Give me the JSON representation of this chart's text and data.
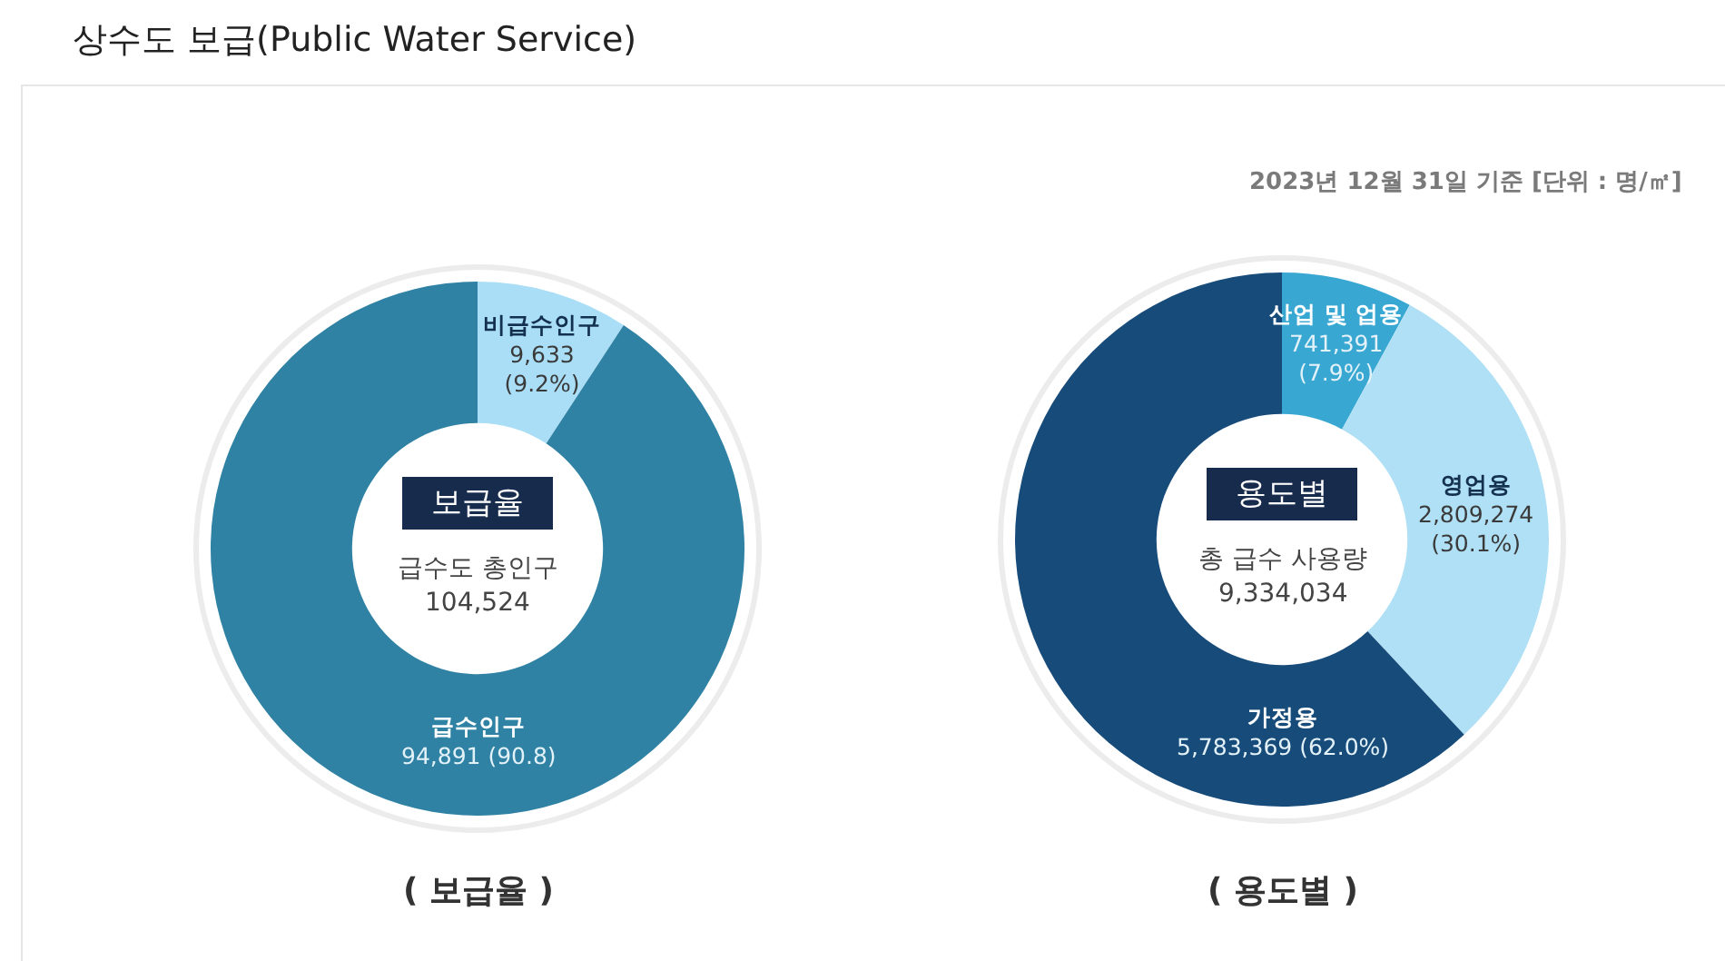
{
  "chart_data": [
    {
      "type": "donut",
      "title": "상수도 보급(Public Water Service)",
      "categories": [
        "비급수인구",
        "급수인구"
      ],
      "values": [
        9633,
        94891
      ],
      "colors": [
        "#a9def6",
        "#2f82a3"
      ],
      "value_labels": [
        "9,633\n(9.2%)",
        "94,891 (90.8)"
      ],
      "annotations": [
        "보급율",
        "급수도 총인구",
        "104,524",
        "( 보급율 )"
      ]
    },
    {
      "type": "donut",
      "subtitle": "2023년 12월 31일 기준 [단위 : 명/㎡]",
      "categories": [
        "산업 및 업용",
        "영업용",
        "가정용"
      ],
      "values": [
        741391,
        2809274,
        5783369
      ],
      "colors": [
        "#38a7d2",
        "#b0e0f5",
        "#174b7a"
      ],
      "value_labels": [
        "741,391\n(7.9%)",
        "2,809,274\n(30.1%)",
        "5,783,369 (62.0%)"
      ],
      "annotations": [
        "용도별",
        "총 급수 사용량",
        "9,334,034",
        "( 용도별 )"
      ]
    }
  ]
}
